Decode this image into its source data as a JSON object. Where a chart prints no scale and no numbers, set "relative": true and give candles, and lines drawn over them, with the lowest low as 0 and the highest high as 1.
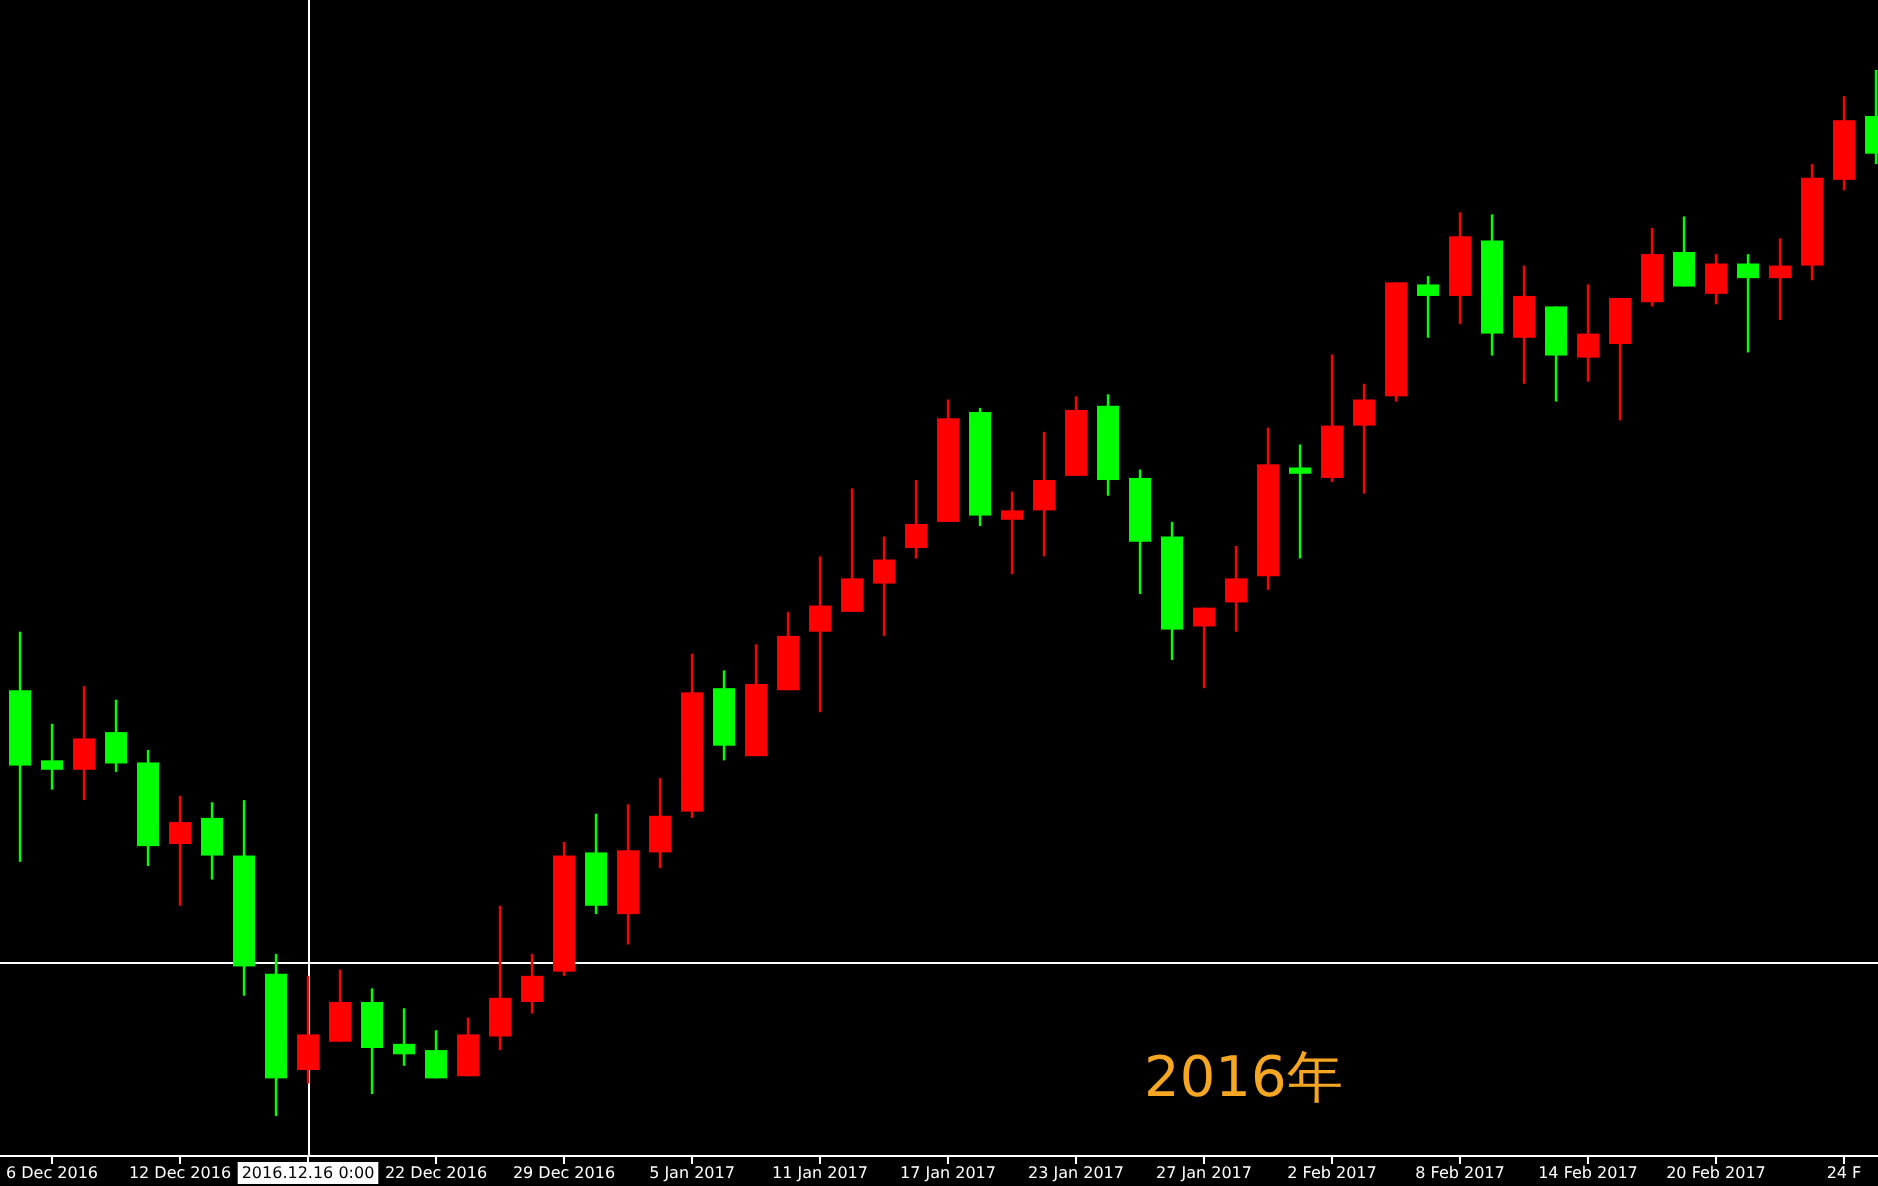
{
  "chart_data": {
    "type": "candlestick",
    "relative": true,
    "categories": [
      null,
      "6 Dec 2016",
      null,
      null,
      null,
      "12 Dec 2016",
      null,
      null,
      null,
      "2016.12.16 0:00",
      null,
      null,
      null,
      "22 Dec 2016",
      null,
      null,
      null,
      "29 Dec 2016",
      null,
      null,
      null,
      "5 Jan 2017",
      null,
      null,
      null,
      "11 Jan 2017",
      null,
      null,
      null,
      "17 Jan 2017",
      null,
      null,
      null,
      "23 Jan 2017",
      null,
      null,
      null,
      "27 Jan 2017",
      null,
      null,
      null,
      "2 Feb 2017",
      null,
      null,
      null,
      "8 Feb 2017",
      null,
      null,
      null,
      "14 Feb 2017",
      null,
      null,
      null,
      "20 Feb 2017",
      null,
      null,
      null,
      "24 F",
      null
    ],
    "ohlc": [
      [
        0.407,
        0.463,
        0.243,
        0.335
      ],
      [
        0.34,
        0.375,
        0.312,
        0.331
      ],
      [
        0.331,
        0.411,
        0.302,
        0.361
      ],
      [
        0.367,
        0.398,
        0.329,
        0.337
      ],
      [
        0.338,
        0.35,
        0.239,
        0.258
      ],
      [
        0.26,
        0.306,
        0.201,
        0.281
      ],
      [
        0.285,
        0.3,
        0.226,
        0.249
      ],
      [
        0.249,
        0.302,
        0.115,
        0.143
      ],
      [
        0.136,
        0.155,
        0,
        0.036
      ],
      [
        0.044,
        0.134,
        0.031,
        0.078
      ],
      [
        0.071,
        0.14,
        0.071,
        0.109
      ],
      [
        0.109,
        0.122,
        0.021,
        0.065
      ],
      [
        0.069,
        0.103,
        0.048,
        0.059
      ],
      [
        0.063,
        0.082,
        0.036,
        0.036
      ],
      [
        0.038,
        0.094,
        0.038,
        0.078
      ],
      [
        0.076,
        0.201,
        0.063,
        0.113
      ],
      [
        0.109,
        0.155,
        0.098,
        0.134
      ],
      [
        0.138,
        0.262,
        0.134,
        0.249
      ],
      [
        0.252,
        0.289,
        0.193,
        0.201
      ],
      [
        0.193,
        0.298,
        0.164,
        0.254
      ],
      [
        0.252,
        0.323,
        0.237,
        0.287
      ],
      [
        0.291,
        0.442,
        0.285,
        0.405
      ],
      [
        0.409,
        0.426,
        0.34,
        0.354
      ],
      [
        0.344,
        0.451,
        0.344,
        0.413
      ],
      [
        0.407,
        0.482,
        0.407,
        0.459
      ],
      [
        0.463,
        0.535,
        0.386,
        0.488
      ],
      [
        0.482,
        0.6,
        0.482,
        0.514
      ],
      [
        0.509,
        0.554,
        0.459,
        0.532
      ],
      [
        0.543,
        0.608,
        0.533,
        0.566
      ],
      [
        0.568,
        0.685,
        0.568,
        0.667
      ],
      [
        0.673,
        0.677,
        0.564,
        0.574
      ],
      [
        0.57,
        0.597,
        0.518,
        0.579
      ],
      [
        0.579,
        0.654,
        0.535,
        0.608
      ],
      [
        0.612,
        0.688,
        0.612,
        0.675
      ],
      [
        0.679,
        0.69,
        0.593,
        0.608
      ],
      [
        0.61,
        0.618,
        0.499,
        0.549
      ],
      [
        0.554,
        0.568,
        0.436,
        0.465
      ],
      [
        0.468,
        0.486,
        0.409,
        0.486
      ],
      [
        0.491,
        0.545,
        0.463,
        0.514
      ],
      [
        0.516,
        0.658,
        0.503,
        0.623
      ],
      [
        0.62,
        0.642,
        0.533,
        0.614
      ],
      [
        0.61,
        0.728,
        0.606,
        0.66
      ],
      [
        0.66,
        0.7,
        0.595,
        0.685
      ],
      [
        0.688,
        0.797,
        0.683,
        0.797
      ],
      [
        0.795,
        0.803,
        0.744,
        0.784
      ],
      [
        0.784,
        0.864,
        0.757,
        0.841
      ],
      [
        0.837,
        0.862,
        0.727,
        0.748
      ],
      [
        0.744,
        0.813,
        0.7,
        0.784
      ],
      [
        0.774,
        0.774,
        0.683,
        0.727
      ],
      [
        0.725,
        0.795,
        0.702,
        0.748
      ],
      [
        0.738,
        0.782,
        0.665,
        0.782
      ],
      [
        0.778,
        0.849,
        0.774,
        0.824
      ],
      [
        0.826,
        0.86,
        0.793,
        0.793
      ],
      [
        0.786,
        0.824,
        0.776,
        0.815
      ],
      [
        0.815,
        0.824,
        0.73,
        0.801
      ],
      [
        0.801,
        0.839,
        0.761,
        0.813
      ],
      [
        0.813,
        0.91,
        0.799,
        0.897
      ],
      [
        0.895,
        0.975,
        0.885,
        0.952
      ],
      [
        0.956,
        1,
        0.91,
        0.92
      ]
    ],
    "colors": [
      "#00ff00",
      "#00ff00",
      "#ff0000",
      "#00ff00",
      "#00ff00",
      "#ff0000",
      "#00ff00",
      "#00ff00",
      "#00ff00",
      "#ff0000",
      "#ff0000",
      "#00ff00",
      "#00ff00",
      "#00ff00",
      "#ff0000",
      "#ff0000",
      "#ff0000",
      "#ff0000",
      "#00ff00",
      "#ff0000",
      "#ff0000",
      "#ff0000",
      "#00ff00",
      "#ff0000",
      "#ff0000",
      "#ff0000",
      "#ff0000",
      "#ff0000",
      "#ff0000",
      "#ff0000",
      "#00ff00",
      "#ff0000",
      "#ff0000",
      "#ff0000",
      "#00ff00",
      "#00ff00",
      "#00ff00",
      "#ff0000",
      "#ff0000",
      "#ff0000",
      "#00ff00",
      "#ff0000",
      "#ff0000",
      "#ff0000",
      "#00ff00",
      "#ff0000",
      "#00ff00",
      "#ff0000",
      "#00ff00",
      "#ff0000",
      "#ff0000",
      "#ff0000",
      "#00ff00",
      "#ff0000",
      "#00ff00",
      "#ff0000",
      "#ff0000",
      "#ff0000",
      "#00ff00"
    ],
    "ref_lines": [
      {
        "axis": "x",
        "value": "2016.12.16 0:00",
        "color": "#ffffff"
      },
      {
        "axis": "y",
        "value": 0.147,
        "color": "#ffffff"
      }
    ],
    "annotations": [
      "2016年"
    ]
  }
}
